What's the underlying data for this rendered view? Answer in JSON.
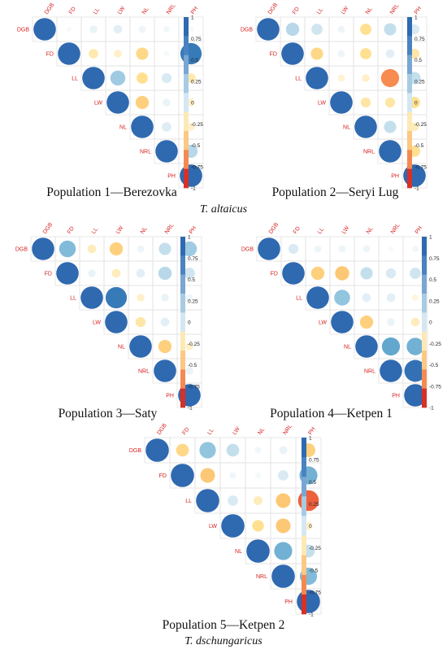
{
  "figure": {
    "species_top": "T. altaicus",
    "species_bottom": "T. dschungaricus"
  },
  "chart_data": [
    {
      "type": "heatmap",
      "subtype": "correlation-circles-upper-triangle",
      "title": "Population 1—Berezovka",
      "variables": [
        "DGB",
        "FD",
        "LL",
        "LW",
        "NL",
        "NRL",
        "PH"
      ],
      "colorbar": {
        "range": [
          -1,
          1
        ],
        "ticks": [
          "1",
          "0.75",
          "0.5",
          "0.25",
          "0",
          "-0.25",
          "-0.5",
          "-0.75",
          "-1"
        ]
      },
      "matrix": [
        [
          1,
          0.05,
          0.12,
          0.15,
          0.1,
          0.08,
          0.06
        ],
        [
          0.05,
          1,
          -0.18,
          -0.12,
          -0.3,
          0.06,
          0.9
        ],
        [
          0.12,
          -0.18,
          1,
          0.45,
          -0.25,
          0.2,
          -0.18
        ],
        [
          0.15,
          -0.12,
          0.45,
          1,
          -0.35,
          0.12,
          -0.12
        ],
        [
          0.1,
          -0.3,
          -0.25,
          -0.35,
          1,
          0.18,
          -0.12
        ],
        [
          0.08,
          0.06,
          0.2,
          0.12,
          0.18,
          1,
          0.35
        ],
        [
          0.06,
          0.9,
          -0.18,
          -0.12,
          -0.12,
          0.35,
          1
        ]
      ]
    },
    {
      "type": "heatmap",
      "subtype": "correlation-circles-upper-triangle",
      "title": "Population 2—Seryi Lug",
      "variables": [
        "DGB",
        "FD",
        "LL",
        "LW",
        "NL",
        "NRL",
        "PH"
      ],
      "colorbar": {
        "range": [
          -1,
          1
        ],
        "ticks": [
          "1",
          "0.75",
          "0.5",
          "0.25",
          "0",
          "-0.25",
          "-0.5",
          "-0.75",
          "-1"
        ]
      },
      "matrix": [
        [
          1,
          0.35,
          0.25,
          0.1,
          -0.25,
          0.3,
          0.2
        ],
        [
          0.35,
          1,
          -0.3,
          0.1,
          -0.25,
          0.15,
          -0.2
        ],
        [
          0.25,
          -0.3,
          1,
          -0.1,
          -0.12,
          -0.65,
          0.3
        ],
        [
          0.1,
          0.1,
          -0.1,
          1,
          -0.2,
          -0.2,
          -0.25
        ],
        [
          -0.25,
          -0.25,
          -0.12,
          -0.2,
          1,
          0.3,
          -0.15
        ],
        [
          0.3,
          0.15,
          -0.65,
          -0.2,
          0.3,
          1,
          -0.25
        ],
        [
          0.2,
          -0.2,
          0.3,
          -0.25,
          -0.15,
          -0.25,
          1
        ]
      ]
    },
    {
      "type": "heatmap",
      "subtype": "correlation-circles-upper-triangle",
      "title": "Population 3—Saty",
      "variables": [
        "DGB",
        "FD",
        "LL",
        "LW",
        "NL",
        "NRL",
        "PH"
      ],
      "colorbar": {
        "range": [
          -1,
          1
        ],
        "ticks": [
          "1",
          "0.75",
          "0.5",
          "0.25",
          "0",
          "-0.25",
          "-0.5",
          "-0.75",
          "-1"
        ]
      },
      "matrix": [
        [
          1,
          0.55,
          -0.15,
          -0.35,
          0.1,
          0.3,
          0.45
        ],
        [
          0.55,
          1,
          0.12,
          -0.15,
          0.15,
          0.35,
          0.25
        ],
        [
          -0.15,
          0.12,
          1,
          0.9,
          -0.12,
          0.12,
          0.1
        ],
        [
          -0.35,
          -0.15,
          0.9,
          1,
          -0.2,
          0.15,
          0.04
        ],
        [
          0.1,
          0.15,
          -0.12,
          -0.2,
          1,
          -0.35,
          -0.12
        ],
        [
          0.3,
          0.35,
          0.12,
          0.15,
          -0.35,
          1,
          0.12
        ],
        [
          0.45,
          0.25,
          0.1,
          0.04,
          -0.12,
          0.12,
          1
        ]
      ]
    },
    {
      "type": "heatmap",
      "subtype": "correlation-circles-upper-triangle",
      "title": "Population 4—Ketpen 1",
      "variables": [
        "DGB",
        "FD",
        "LL",
        "LW",
        "NL",
        "NRL",
        "PH"
      ],
      "colorbar": {
        "range": [
          -1,
          1
        ],
        "ticks": [
          "1",
          "0.75",
          "0.5",
          "0.25",
          "0",
          "-0.25",
          "-0.5",
          "-0.75",
          "-1"
        ]
      },
      "matrix": [
        [
          1,
          0.2,
          0.1,
          0.1,
          0.1,
          0.05,
          0.08
        ],
        [
          0.2,
          1,
          -0.35,
          -0.4,
          0.3,
          0.2,
          0.25
        ],
        [
          0.1,
          -0.35,
          1,
          0.5,
          0.15,
          0.15,
          -0.08
        ],
        [
          0.1,
          -0.4,
          0.5,
          1,
          -0.35,
          0.12,
          -0.15
        ],
        [
          0.1,
          0.3,
          0.15,
          -0.35,
          1,
          0.65,
          0.6
        ],
        [
          0.05,
          0.2,
          0.15,
          0.12,
          0.65,
          1,
          0.95
        ],
        [
          0.08,
          0.25,
          -0.08,
          -0.15,
          0.6,
          0.95,
          1
        ]
      ]
    },
    {
      "type": "heatmap",
      "subtype": "correlation-circles-upper-triangle",
      "title": "Population 5—Ketpen 2",
      "variables": [
        "DGB",
        "FD",
        "LL",
        "LW",
        "NL",
        "NRL",
        "PH"
      ],
      "colorbar": {
        "range": [
          -1,
          1
        ],
        "ticks": [
          "1",
          "0.75",
          "0.5",
          "0.25",
          "0",
          "-0.25",
          "-0.5",
          "-0.75",
          "-1"
        ]
      },
      "matrix": [
        [
          1,
          -0.3,
          0.5,
          0.3,
          0.08,
          0.12,
          -0.35
        ],
        [
          -0.3,
          1,
          -0.4,
          0.08,
          0.06,
          0.2,
          0.6
        ],
        [
          0.5,
          -0.4,
          1,
          0.2,
          -0.15,
          -0.4,
          -0.8
        ],
        [
          0.3,
          0.08,
          0.2,
          1,
          -0.25,
          -0.4,
          -0.12
        ],
        [
          0.08,
          0.06,
          -0.15,
          -0.25,
          1,
          0.6,
          0.3
        ],
        [
          0.12,
          0.2,
          -0.4,
          -0.4,
          0.6,
          1,
          0.55
        ],
        [
          -0.35,
          0.6,
          -0.8,
          -0.12,
          0.3,
          0.55,
          1
        ]
      ]
    }
  ]
}
